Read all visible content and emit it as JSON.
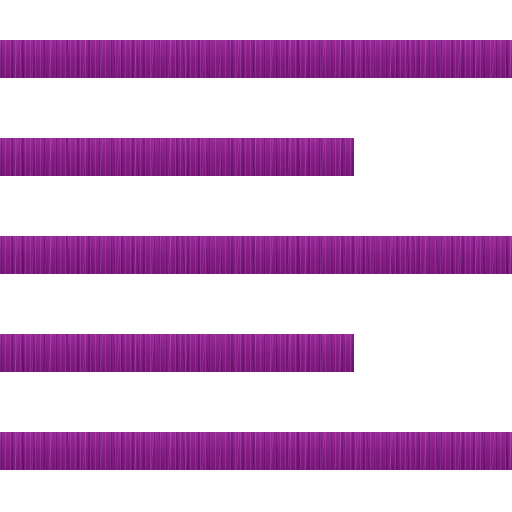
{
  "icon": {
    "name": "text-align-left-icon",
    "color": "#8a1f8a",
    "lines": [
      {
        "length": "full"
      },
      {
        "length": "short"
      },
      {
        "length": "full"
      },
      {
        "length": "short"
      },
      {
        "length": "full"
      }
    ]
  }
}
